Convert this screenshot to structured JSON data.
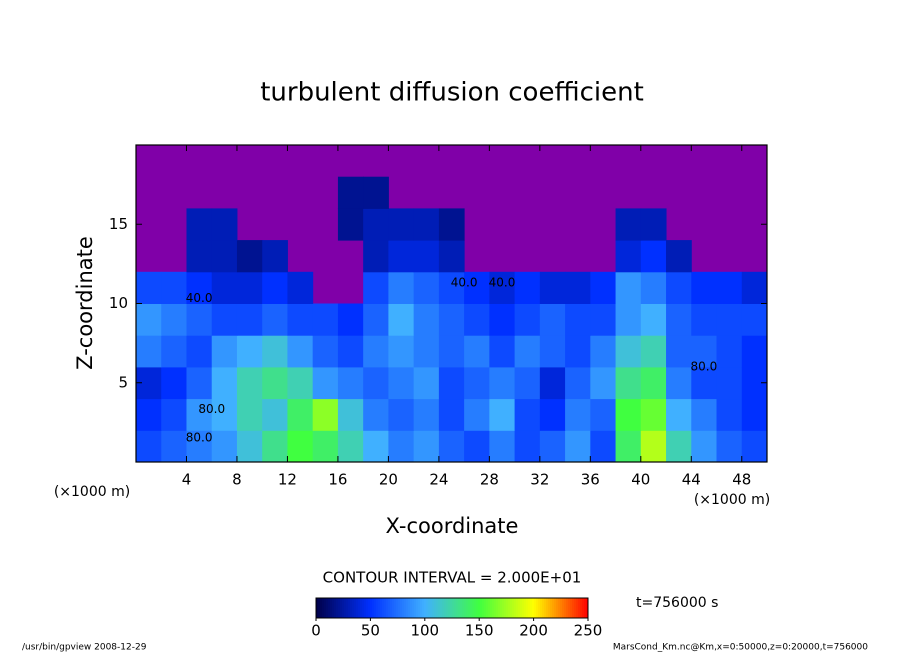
{
  "chart_data": {
    "type": "heatmap",
    "title": "turbulent diffusion coefficient",
    "x_label": "X-coordinate",
    "y_label": "Z-coordinate",
    "x_unit": "(×1000 m)",
    "y_unit": "(×1000 m)",
    "xlim": [
      0,
      50
    ],
    "ylim": [
      0,
      20
    ],
    "xticks": [
      4,
      8,
      12,
      16,
      20,
      24,
      28,
      32,
      36,
      40,
      44,
      48
    ],
    "yticks": [
      5,
      10,
      15
    ],
    "x_edges": [
      0,
      2,
      4,
      6,
      8,
      10,
      12,
      14,
      16,
      18,
      20,
      22,
      24,
      26,
      28,
      30,
      32,
      34,
      36,
      38,
      40,
      42,
      44,
      46,
      48,
      50
    ],
    "y_edges": [
      0,
      2,
      4,
      6,
      8,
      10,
      12,
      14,
      16,
      18,
      20
    ],
    "field": [
      [
        60,
        70,
        80,
        90,
        110,
        130,
        150,
        140,
        120,
        100,
        80,
        90,
        70,
        60,
        80,
        60,
        70,
        90,
        60,
        140,
        180,
        120,
        90,
        70,
        60
      ],
      [
        50,
        60,
        90,
        100,
        120,
        110,
        140,
        170,
        110,
        80,
        70,
        80,
        60,
        80,
        100,
        60,
        50,
        80,
        70,
        150,
        160,
        100,
        80,
        60,
        50
      ],
      [
        40,
        50,
        70,
        100,
        120,
        130,
        120,
        90,
        80,
        70,
        80,
        90,
        60,
        70,
        80,
        70,
        40,
        70,
        90,
        130,
        140,
        80,
        60,
        60,
        50
      ],
      [
        80,
        70,
        60,
        90,
        100,
        110,
        90,
        70,
        60,
        80,
        90,
        80,
        70,
        80,
        60,
        80,
        70,
        60,
        80,
        110,
        120,
        70,
        70,
        60,
        50
      ],
      [
        90,
        80,
        70,
        60,
        60,
        70,
        60,
        60,
        50,
        70,
        100,
        80,
        70,
        60,
        50,
        60,
        70,
        60,
        60,
        90,
        100,
        70,
        60,
        60,
        60
      ],
      [
        60,
        60,
        50,
        40,
        40,
        50,
        40,
        null,
        null,
        60,
        80,
        70,
        60,
        50,
        40,
        50,
        40,
        40,
        50,
        90,
        80,
        60,
        50,
        50,
        40
      ],
      [
        null,
        null,
        30,
        30,
        20,
        30,
        null,
        null,
        null,
        30,
        40,
        40,
        30,
        null,
        null,
        null,
        null,
        null,
        null,
        40,
        50,
        30,
        null,
        null,
        null
      ],
      [
        null,
        null,
        30,
        30,
        null,
        null,
        null,
        null,
        20,
        30,
        30,
        30,
        20,
        null,
        null,
        null,
        null,
        null,
        null,
        30,
        30,
        null,
        null,
        null,
        null
      ],
      [
        null,
        null,
        null,
        null,
        null,
        null,
        null,
        null,
        20,
        20,
        null,
        null,
        null,
        null,
        null,
        null,
        null,
        null,
        null,
        null,
        null,
        null,
        null,
        null,
        null
      ],
      [
        null,
        null,
        null,
        null,
        null,
        null,
        null,
        null,
        null,
        null,
        null,
        null,
        null,
        null,
        null,
        null,
        null,
        null,
        null,
        null,
        null,
        null,
        null,
        null,
        null
      ]
    ],
    "background_color": "#8000a8",
    "colors": [
      "#000048",
      "#0030ff",
      "#40b0ff",
      "#40ff40",
      "#ffff00",
      "#ff0000"
    ],
    "clim": [
      0,
      250
    ],
    "colorbar_ticks": [
      0,
      50,
      100,
      150,
      200,
      250
    ],
    "contour_interval": "CONTOUR INTERVAL = 2.000E+01",
    "contour_labels": [
      {
        "value": 40,
        "label": "40.0",
        "x": 5,
        "z": 10.3
      },
      {
        "value": 40,
        "label": "40.0",
        "x": 26,
        "z": 11.3
      },
      {
        "value": 40,
        "label": "40.0",
        "x": 29,
        "z": 11.3
      },
      {
        "value": 80,
        "label": "80.0",
        "x": 6,
        "z": 3.3
      },
      {
        "value": 80,
        "label": "80.0",
        "x": 5,
        "z": 1.5
      },
      {
        "value": 80,
        "label": "80.0",
        "x": 45,
        "z": 6
      }
    ],
    "time_label": "t=756000 s",
    "footer_left": "/usr/bin/gpview   2008-12-29",
    "footer_right": "MarsCond_Km.nc@Km,x=0:50000,z=0:20000,t=756000"
  }
}
